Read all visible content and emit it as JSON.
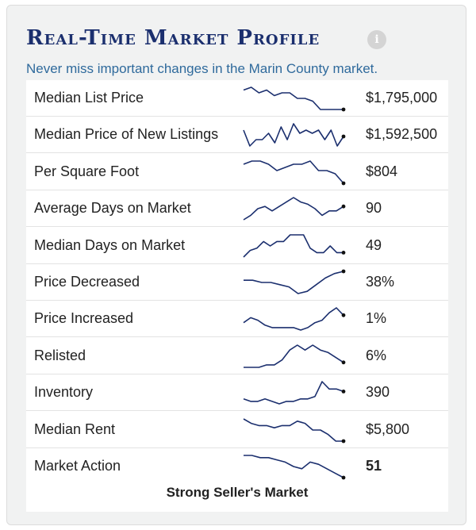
{
  "widget": {
    "title": "Real-Time Market Profile",
    "info_icon": "info-icon",
    "subtitle": "Never miss important changes in the Marin County market.",
    "market_status": "Strong Seller's Market"
  },
  "colors": {
    "title": "#1b2f6e",
    "subtitle": "#2f6a9c",
    "sparkline": "#1b2f6e"
  },
  "rows": [
    {
      "label": "Median List Price",
      "value": "$1,795,000",
      "trend": [
        9,
        10,
        8,
        9,
        7,
        8,
        8,
        6,
        6,
        5,
        2,
        2,
        2,
        2
      ]
    },
    {
      "label": "Median Price of New Listings",
      "value": "$1,592,500",
      "trend": [
        8,
        3,
        5,
        5,
        7,
        4,
        9,
        5,
        10,
        7,
        8,
        7,
        8,
        5,
        8,
        3,
        6
      ]
    },
    {
      "label": "Per Square Foot",
      "value": "$804",
      "trend": [
        7,
        8,
        8,
        7,
        5,
        6,
        7,
        7,
        8,
        5,
        5,
        4,
        1
      ]
    },
    {
      "label": "Average Days on Market",
      "value": "90",
      "trend": [
        1,
        3,
        6,
        7,
        5,
        7,
        9,
        11,
        9,
        8,
        6,
        3,
        5,
        5,
        7
      ]
    },
    {
      "label": "Median Days on Market",
      "value": "49",
      "trend": [
        1,
        4,
        5,
        8,
        6,
        8,
        8,
        11,
        11,
        11,
        5,
        3,
        3,
        6,
        3,
        3
      ]
    },
    {
      "label": "Price Decreased",
      "value": "38%",
      "trend": [
        6,
        6,
        5,
        5,
        4,
        3,
        0,
        1,
        4,
        7,
        9,
        10
      ]
    },
    {
      "label": "Price Increased",
      "value": "1%",
      "trend": [
        5,
        7,
        6,
        4,
        3,
        3,
        3,
        3,
        2,
        3,
        5,
        6,
        9,
        11,
        8
      ]
    },
    {
      "label": "Relisted",
      "value": "6%",
      "trend": [
        1,
        1,
        1,
        2,
        2,
        4,
        8,
        10,
        8,
        10,
        8,
        7,
        5,
        3
      ]
    },
    {
      "label": "Inventory",
      "value": "390",
      "trend": [
        3,
        2,
        2,
        3,
        2,
        1,
        2,
        2,
        3,
        3,
        4,
        10,
        7,
        7,
        6
      ]
    },
    {
      "label": "Median Rent",
      "value": "$5,800",
      "trend": [
        10,
        8,
        7,
        7,
        6,
        7,
        7,
        9,
        8,
        5,
        5,
        3,
        0,
        0
      ]
    },
    {
      "label": "Market Action",
      "value": "51",
      "trend": [
        11,
        11,
        10,
        10,
        9,
        8,
        6,
        5,
        8,
        7,
        5,
        3,
        1
      ]
    }
  ]
}
